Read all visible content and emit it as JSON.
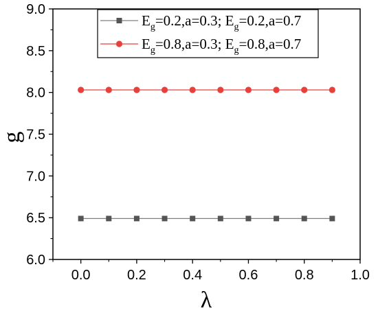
{
  "chart_data": {
    "type": "line",
    "xlabel": "λ",
    "ylabel": "g",
    "xlim": [
      -0.1,
      1.0
    ],
    "ylim": [
      6.0,
      9.0
    ],
    "xticks": [
      0.0,
      0.2,
      0.4,
      0.6,
      0.8,
      1.0
    ],
    "xtick_labels": [
      "0.0",
      "0.2",
      "0.4",
      "0.6",
      "0.8",
      "1.0"
    ],
    "yticks": [
      6.0,
      6.5,
      7.0,
      7.5,
      8.0,
      8.5,
      9.0
    ],
    "ytick_labels": [
      "6.0",
      "6.5",
      "7.0",
      "7.5",
      "8.0",
      "8.5",
      "9.0"
    ],
    "grid": false,
    "legend_position": "top-right",
    "x": [
      0.0,
      0.1,
      0.2,
      0.3,
      0.4,
      0.5,
      0.6,
      0.7,
      0.8,
      0.9
    ],
    "series": [
      {
        "legend": {
          "p1": "E",
          "s1": "g",
          "p2": "=0.2,a=0.3; E",
          "s2": "g",
          "p3": "=0.2,a=0.7"
        },
        "color": "#555555",
        "line_color": "#7f7f7f",
        "marker": "square",
        "values": [
          6.49,
          6.49,
          6.49,
          6.49,
          6.49,
          6.49,
          6.49,
          6.49,
          6.49,
          6.49
        ]
      },
      {
        "legend": {
          "p1": "E",
          "s1": "g",
          "p2": "=0.8,a=0.3; E",
          "s2": "g",
          "p3": "=0.8,a=0.7"
        },
        "color": "#e8413c",
        "line_color": "#e8413c",
        "marker": "circle",
        "values": [
          8.03,
          8.03,
          8.03,
          8.03,
          8.03,
          8.03,
          8.03,
          8.03,
          8.03,
          8.03
        ]
      }
    ]
  }
}
